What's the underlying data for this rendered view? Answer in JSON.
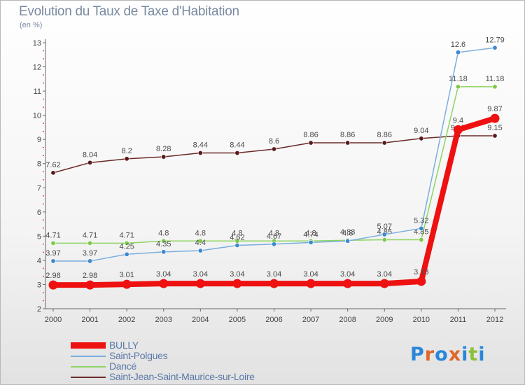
{
  "title": "Evolution du Taux de Taxe d'Habitation",
  "subtitle": "(en %)",
  "logo": {
    "text": "Proxiti",
    "letter_colors": [
      "#2a86d8",
      "#e0662a",
      "#2a86d8",
      "#e0662a",
      "#2a86d8",
      "#8ac03a",
      "#2a86d8"
    ]
  },
  "chart_data": {
    "type": "line",
    "title": "Evolution du Taux de Taxe d'Habitation",
    "subtitle": "(en %)",
    "x": [
      "2000",
      "2001",
      "2002",
      "2003",
      "2004",
      "2005",
      "2006",
      "2007",
      "2008",
      "2009",
      "2010",
      "2011",
      "2012"
    ],
    "y_ticks": [
      "2",
      "3",
      "4",
      "5",
      "6",
      "7",
      "8",
      "9",
      "10",
      "11",
      "12",
      "13"
    ],
    "ylim": [
      2,
      13
    ],
    "grid": false,
    "legend_position": "bottom-left",
    "series": [
      {
        "name": "Saint-Jean-Saint-Maurice-sur-Loire",
        "color": "#6b2a2a",
        "point_color": "#5a1a1a",
        "values": [
          7.62,
          8.04,
          8.2,
          8.28,
          8.44,
          8.44,
          8.6,
          8.86,
          8.86,
          8.86,
          9.04,
          9.15,
          9.15
        ],
        "labels": [
          "7.62",
          "8.04",
          "8.2",
          "8.28",
          "8.44",
          "8.44",
          "8.6",
          "8.86",
          "8.86",
          "8.86",
          "9.04",
          "9.15",
          "9.15"
        ]
      },
      {
        "name": "Dancé",
        "color": "#8ed462",
        "point_color": "#7cc84a",
        "values": [
          4.71,
          4.71,
          4.71,
          4.8,
          4.8,
          4.8,
          4.8,
          4.8,
          4.83,
          4.85,
          4.85,
          11.18,
          11.18
        ],
        "labels": [
          "4.71",
          "4.71",
          "4.71",
          "4.8",
          "4.8",
          "4.8",
          "4.8",
          "4.8",
          "4.83",
          "4.85",
          "4.85",
          "11.18",
          "11.18"
        ]
      },
      {
        "name": "Saint-Polgues",
        "color": "#7aaee0",
        "point_color": "#3e88cc",
        "values": [
          3.97,
          3.97,
          4.25,
          4.35,
          4.4,
          4.62,
          4.67,
          4.74,
          4.8,
          5.07,
          5.32,
          12.6,
          12.79
        ],
        "labels": [
          "3.97",
          "3.97",
          "4.25",
          "4.35",
          "4.4",
          "4.62",
          "4.67",
          "4.74",
          "4.8",
          "5.07",
          "5.32",
          "12.6",
          "12.79"
        ]
      },
      {
        "name": "BULLY",
        "color": "#ee1111",
        "point_color": "#ee1111",
        "values": [
          2.98,
          2.98,
          3.01,
          3.04,
          3.04,
          3.04,
          3.04,
          3.04,
          3.04,
          3.04,
          3.13,
          9.4,
          9.87
        ],
        "labels": [
          "2.98",
          "2.98",
          "3.01",
          "3.04",
          "3.04",
          "3.04",
          "3.04",
          "3.04",
          "3.04",
          "3.04",
          "3.13",
          "9.4",
          "9.87"
        ]
      }
    ]
  }
}
